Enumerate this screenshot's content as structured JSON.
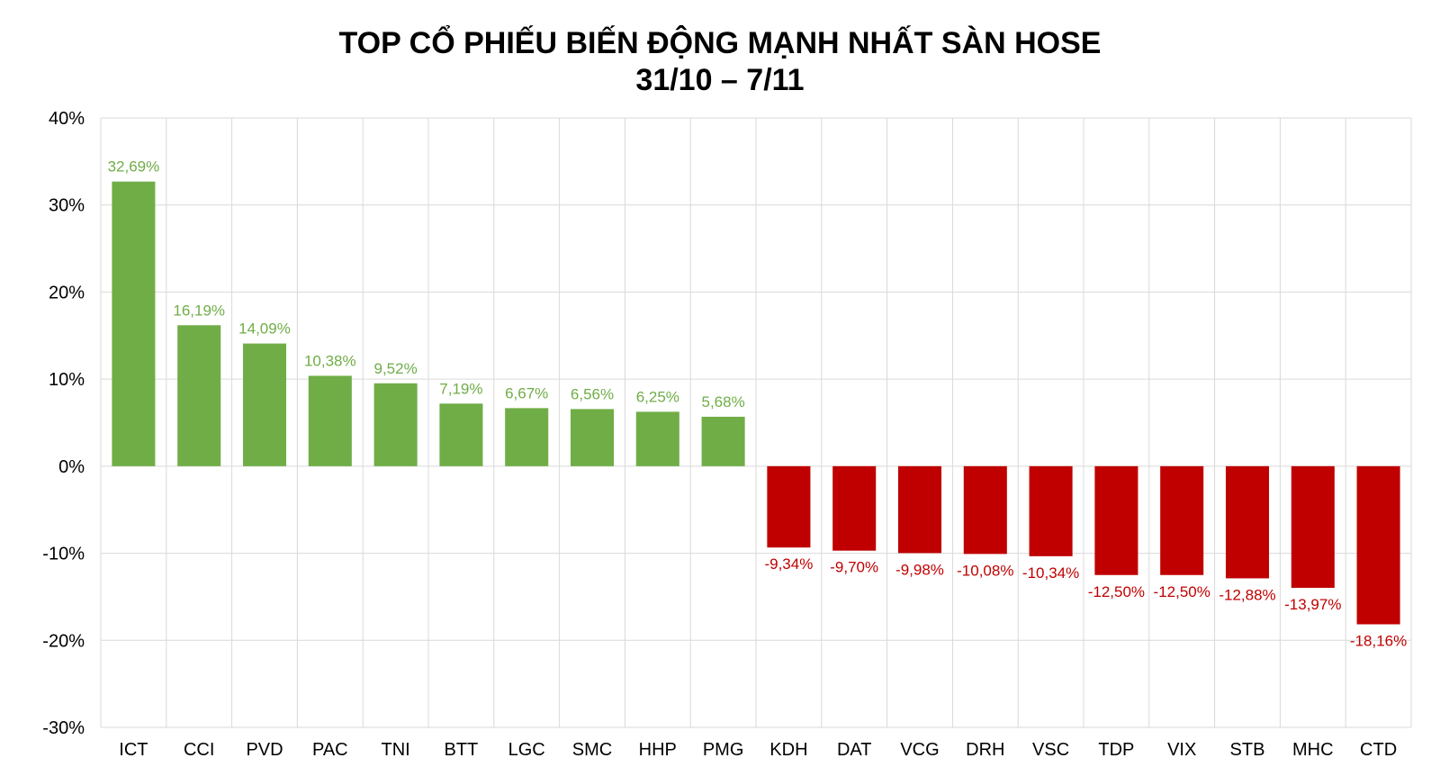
{
  "chart_data": {
    "type": "bar",
    "title": "TOP CỔ PHIẾU BIẾN ĐỘNG MẠNH NHẤT SÀN HOSE",
    "subtitle": "31/10 – 7/11",
    "xlabel": "",
    "ylabel": "",
    "ylim": [
      -30,
      40
    ],
    "yticks": [
      40,
      30,
      20,
      10,
      0,
      -10,
      -20,
      -30
    ],
    "ytick_labels": [
      "40%",
      "30%",
      "20%",
      "10%",
      "0%",
      "-10%",
      "-20%",
      "-30%"
    ],
    "grid": true,
    "categories": [
      "ICT",
      "CCI",
      "PVD",
      "PAC",
      "TNI",
      "BTT",
      "LGC",
      "SMC",
      "HHP",
      "PMG",
      "KDH",
      "DAT",
      "VCG",
      "DRH",
      "VSC",
      "TDP",
      "VIX",
      "STB",
      "MHC",
      "CTD"
    ],
    "values": [
      32.69,
      16.19,
      14.09,
      10.38,
      9.52,
      7.19,
      6.67,
      6.56,
      6.25,
      5.68,
      -9.34,
      -9.7,
      -9.98,
      -10.08,
      -10.34,
      -12.5,
      -12.5,
      -12.88,
      -13.97,
      -18.16
    ],
    "data_labels": [
      "32,69%",
      "16,19%",
      "14,09%",
      "10,38%",
      "9,52%",
      "7,19%",
      "6,67%",
      "6,56%",
      "6,25%",
      "5,68%",
      "-9,34%",
      "-9,70%",
      "-9,98%",
      "-10,08%",
      "-10,34%",
      "-12,50%",
      "-12,50%",
      "-12,88%",
      "-13,97%",
      "-18,16%"
    ],
    "colors": {
      "positive": "#70ad47",
      "negative": "#c00000",
      "grid": "#d9d9d9"
    }
  }
}
